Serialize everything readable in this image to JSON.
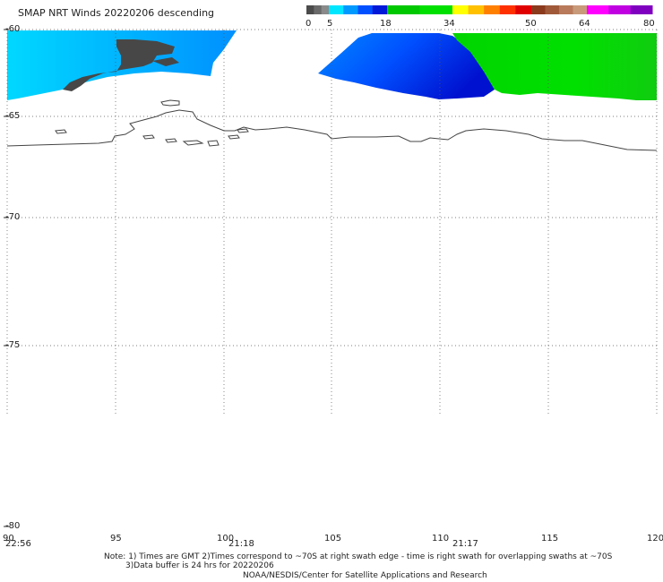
{
  "header": {
    "title": "SMAP NRT Winds   20220206  descending"
  },
  "colorbar": {
    "labels": [
      "0",
      "5",
      "18",
      "34",
      "50",
      "64",
      "80"
    ],
    "segments": [
      {
        "from": 0,
        "to": 5,
        "colors": [
          "#4b4b4b",
          "#6a6a6a",
          "#8a8a8a"
        ]
      },
      {
        "from": 5,
        "to": 18,
        "colors": [
          "#00e6ff",
          "#0099ff",
          "#0050ff",
          "#0018d8"
        ]
      },
      {
        "from": 18,
        "to": 34,
        "colors": [
          "#00c800",
          "#00e000"
        ]
      },
      {
        "from": 34,
        "to": 50,
        "colors": [
          "#ffff00",
          "#ffc000",
          "#ff8000",
          "#ff3000",
          "#e00000"
        ]
      },
      {
        "from": 50,
        "to": 64,
        "colors": [
          "#8b3a1e",
          "#a05a3a",
          "#b87a5a",
          "#c89a7a"
        ]
      },
      {
        "from": 64,
        "to": 80,
        "colors": [
          "#ff00ff",
          "#c000e0",
          "#8000c0"
        ]
      }
    ]
  },
  "map": {
    "lat_labels": [
      "-60",
      "-65",
      "-70",
      "-75",
      "-80"
    ],
    "lon_labels": [
      "90",
      "95",
      "100",
      "105",
      "110",
      "115",
      "120"
    ],
    "pass_times": [
      "22:56",
      "21:18",
      "21:17"
    ]
  },
  "footer": {
    "note_line1": "Note: 1) Times are GMT 2)Times correspond to ~70S at right swath edge - time is right swath for overlapping swaths at ~70S",
    "note_line2": "3)Data buffer is 24 hrs for 20220206",
    "credit": "NOAA/NESDIS/Center for Satellite Applications and Research"
  }
}
